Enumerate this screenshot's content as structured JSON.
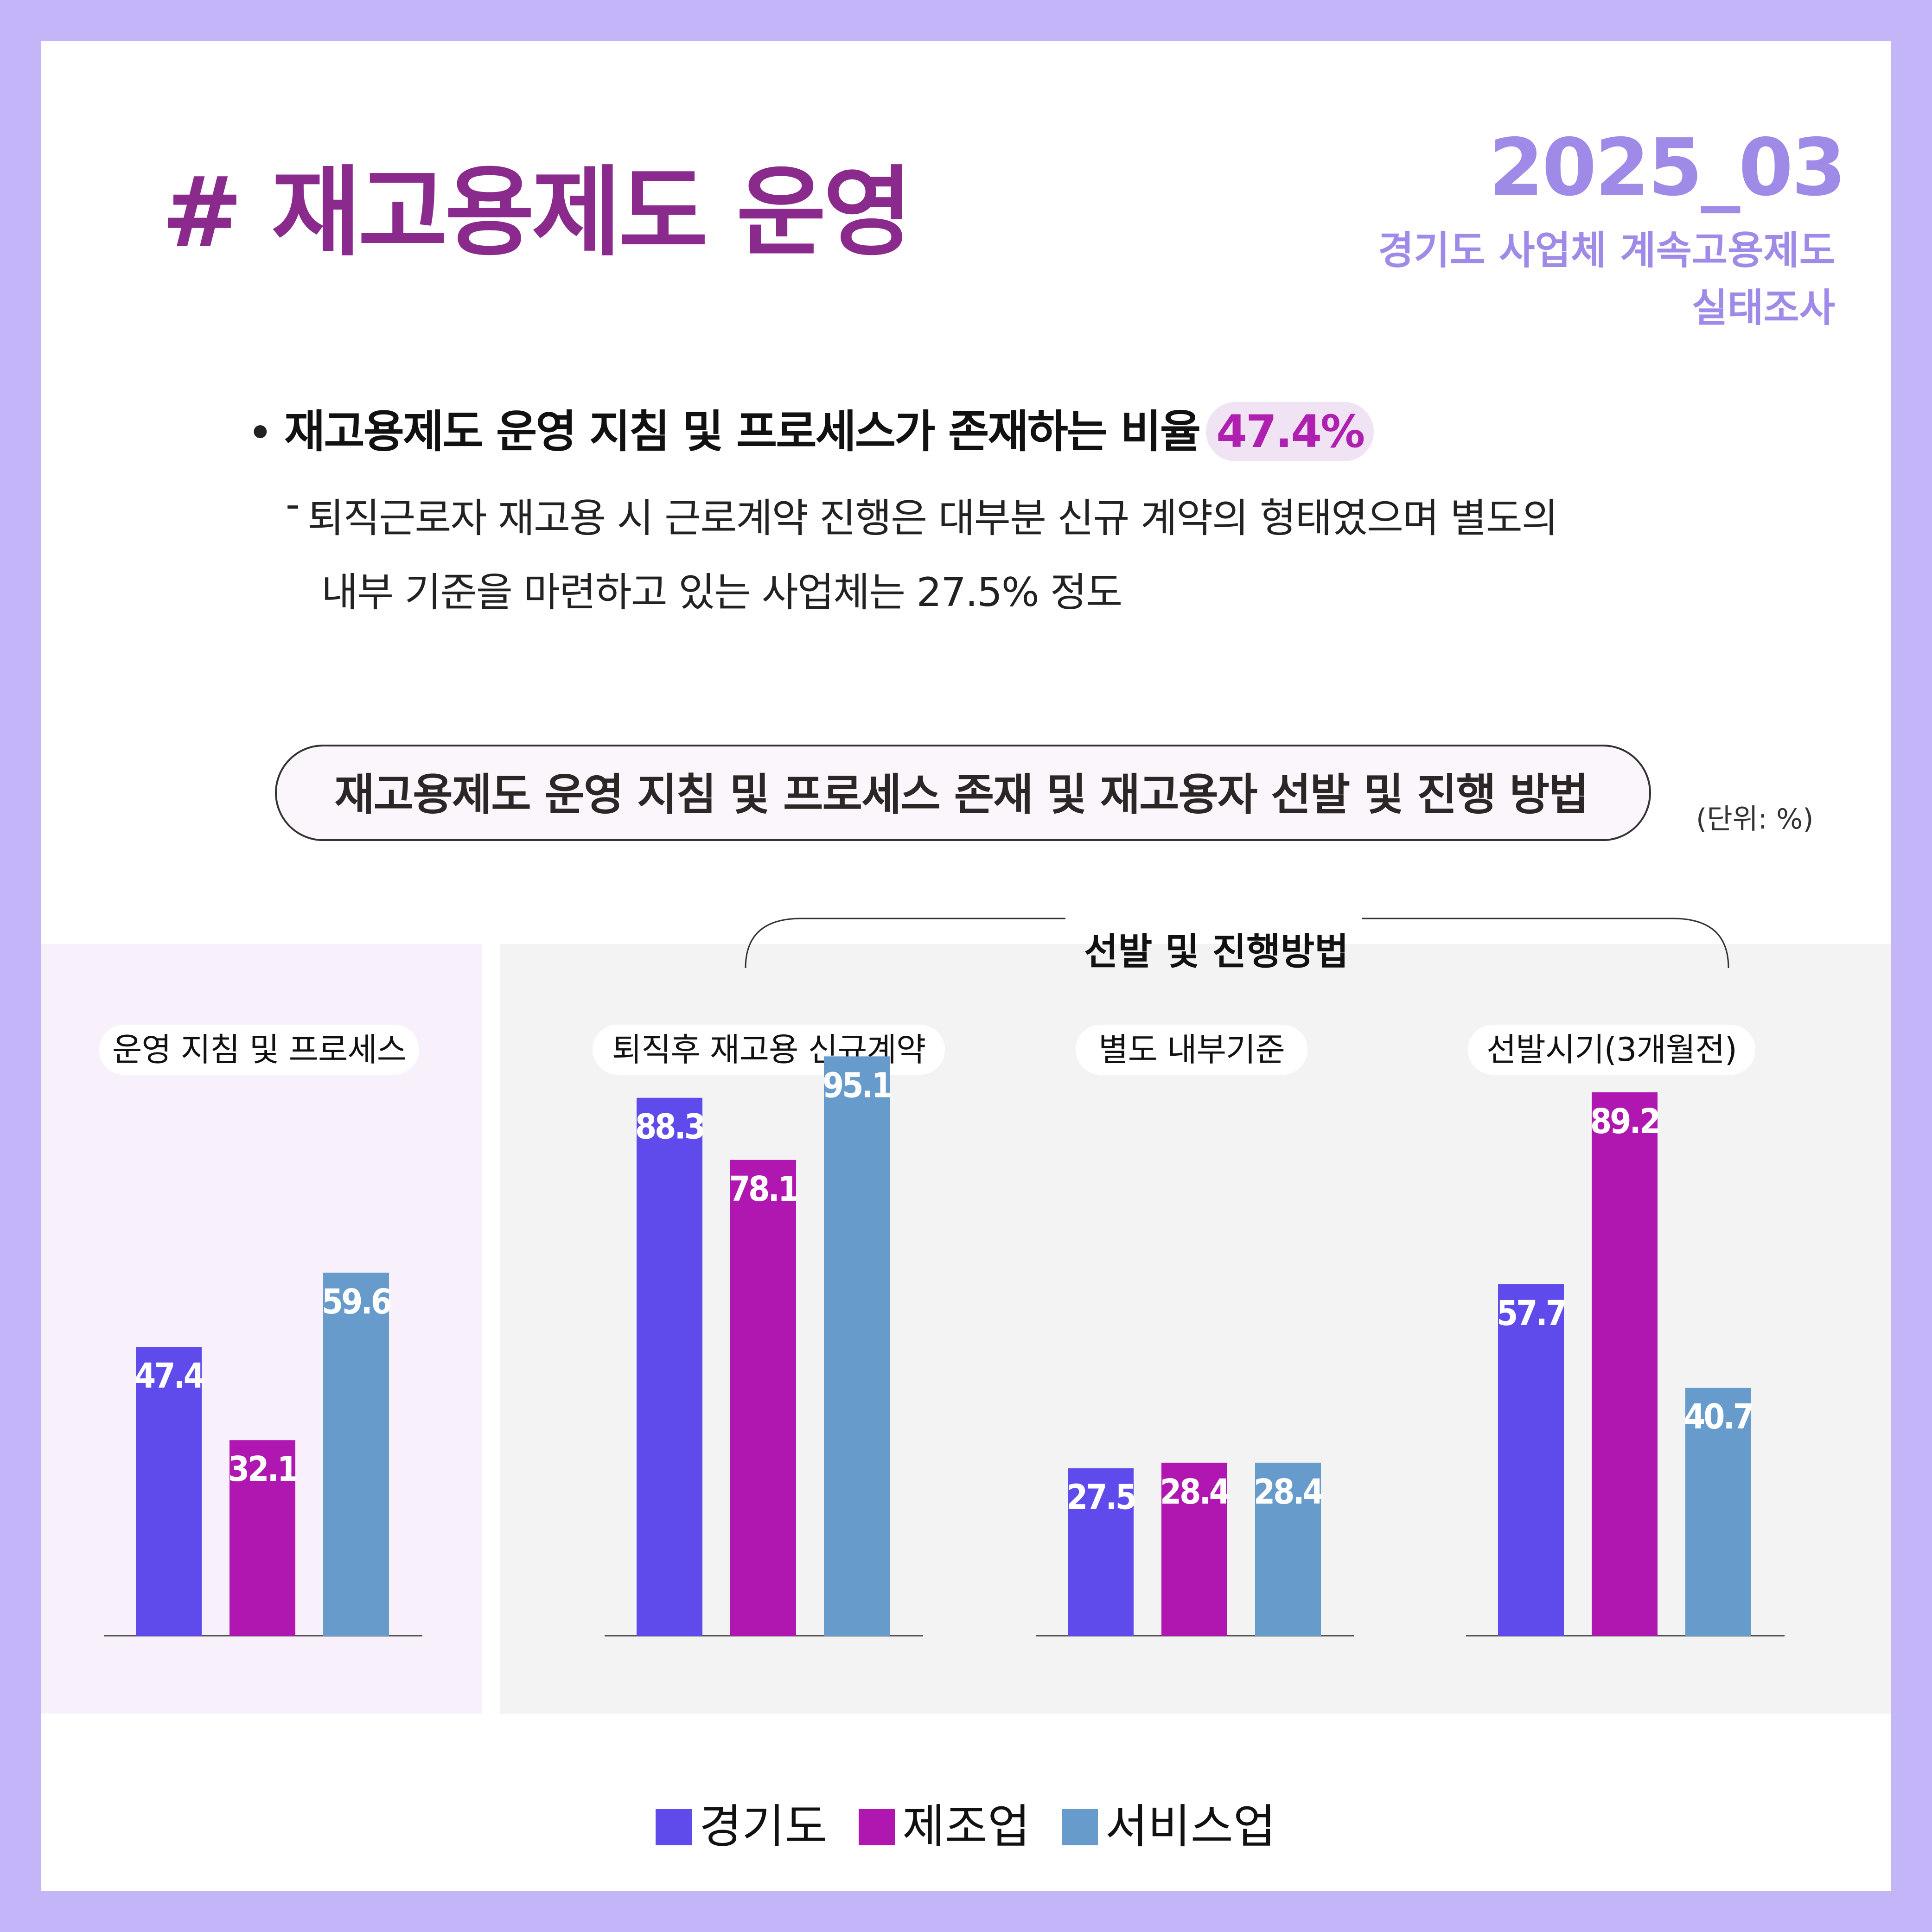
{
  "header": {
    "title": "# 재고용제도 운영",
    "date": "2025_03",
    "survey_line1": "경기도 사업체 계속고용제도",
    "survey_line2": "실태조사"
  },
  "summary": {
    "headline": "재고용제도 운영 지침 및 프로세스가 존재하는 비율",
    "headline_value": "47.4%",
    "description_line1": "퇴직근로자 재고용 시 근로계약 진행은 대부분 신규 계약의 형태였으며 별도의",
    "description_line2": "내부 기준을 마련하고 있는 사업체는 27.5% 정도"
  },
  "chart_title": "재고용제도 운영 지침 및 프로세스 존재 및 재고용자 선발 및 진행 방법",
  "unit": "(단위: %)",
  "span_label": "선발 및 진행방법",
  "colors": {
    "gyeonggi": "#5f4bec",
    "manufacturing": "#b017b0",
    "service": "#669bcc"
  },
  "chart_data": {
    "type": "bar",
    "categories": [
      "운영 지침 및 프로세스",
      "퇴직후 재고용 신규계약",
      "별도 내부기준",
      "선발시기(3개월전)"
    ],
    "series": [
      {
        "name": "경기도",
        "values": [
          47.4,
          88.3,
          27.5,
          57.7
        ]
      },
      {
        "name": "제조업",
        "values": [
          32.1,
          78.1,
          28.4,
          89.2
        ]
      },
      {
        "name": "서비스업",
        "values": [
          59.6,
          95.1,
          28.4,
          40.7
        ]
      }
    ],
    "ylim": [
      0,
      100
    ]
  }
}
